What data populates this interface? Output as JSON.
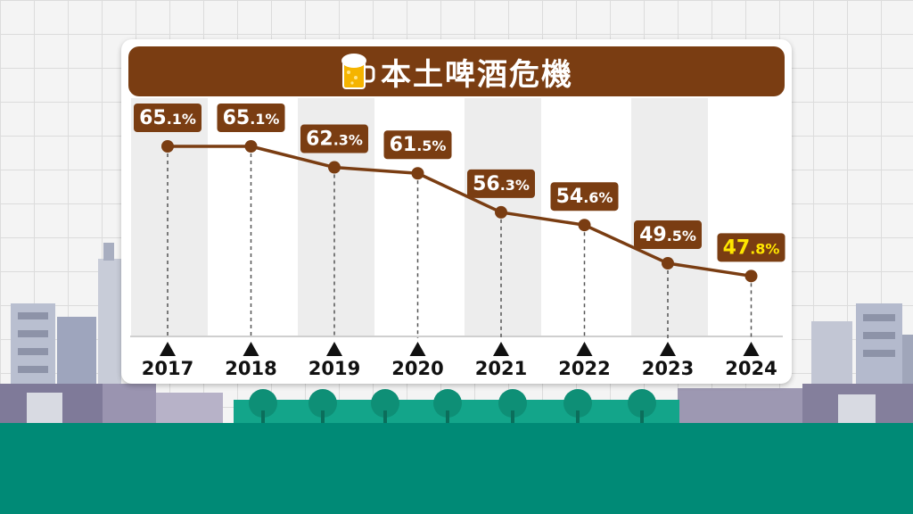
{
  "colors": {
    "brown": "#7a3d12",
    "highlight": "#ffe600",
    "ground": "#008a76",
    "park": "#13a58a"
  },
  "title": "本土啤酒危機",
  "title_icon": "beer-mug-icon",
  "chart_data": {
    "type": "line",
    "title": "本土啤酒危機",
    "categories": [
      "2017",
      "2018",
      "2019",
      "2020",
      "2021",
      "2022",
      "2023",
      "2024"
    ],
    "values": [
      65.1,
      65.1,
      62.3,
      61.5,
      56.3,
      54.6,
      49.5,
      47.8
    ],
    "labels": [
      "65.1%",
      "65.1%",
      "62.3%",
      "61.5%",
      "56.3%",
      "54.6%",
      "49.5%",
      "47.8%"
    ],
    "unit": "%",
    "highlight_last": true,
    "grid": false,
    "legend": "none"
  }
}
